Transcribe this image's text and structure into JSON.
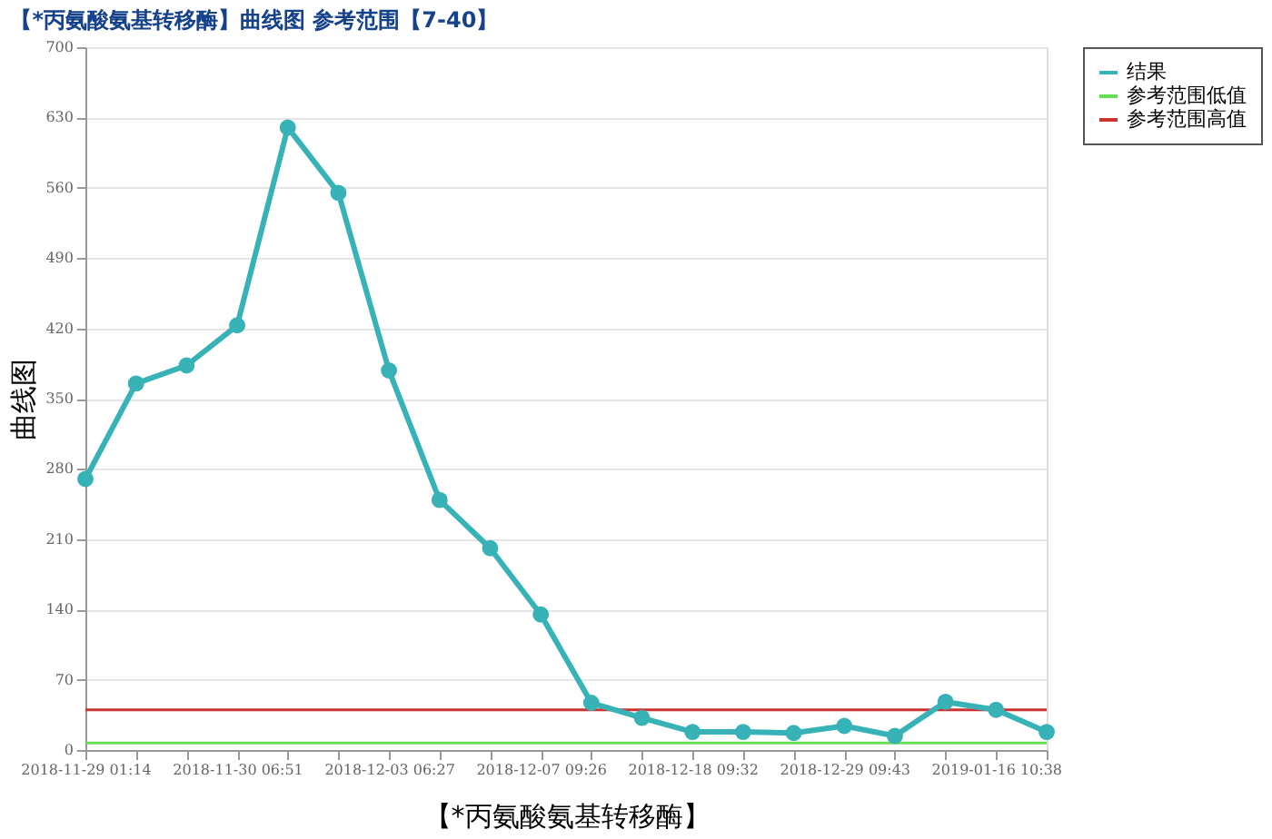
{
  "chart_data": {
    "type": "line",
    "title": "【*丙氨酸氨基转移酶】曲线图  参考范围【7-40】",
    "xlabel": "【*丙氨酸氨基转移酶】",
    "ylabel": "曲线图",
    "categories": [
      "2018-11-29 01:14",
      null,
      null,
      "2018-11-30 06:51",
      null,
      null,
      "2018-12-03 06:27",
      null,
      null,
      "2018-12-07 09:26",
      null,
      null,
      "2018-12-18 09:32",
      null,
      null,
      "2018-12-29 09:43",
      null,
      null,
      "2019-01-16 10:38",
      null
    ],
    "series": [
      {
        "name": "结果",
        "color": "#37b3b8",
        "marker": "circle",
        "values": [
          270,
          365,
          383,
          423,
          620,
          555,
          378,
          249,
          201,
          135,
          47,
          32,
          18,
          18,
          17,
          24,
          14,
          48,
          40,
          18
        ]
      },
      {
        "name": "参考范围低值",
        "color": "#66dd55",
        "marker": "none",
        "values": [
          7,
          7,
          7,
          7,
          7,
          7,
          7,
          7,
          7,
          7,
          7,
          7,
          7,
          7,
          7,
          7,
          7,
          7,
          7,
          7
        ]
      },
      {
        "name": "参考范围高值",
        "color": "#cc3333",
        "marker": "none",
        "values": [
          40,
          40,
          40,
          40,
          40,
          40,
          40,
          40,
          40,
          40,
          40,
          40,
          40,
          40,
          40,
          40,
          40,
          40,
          40,
          40
        ]
      }
    ],
    "ylim": [
      0,
      700
    ],
    "yticks": [
      0,
      70,
      140,
      210,
      280,
      350,
      420,
      490,
      560,
      630,
      700
    ],
    "grid": "y",
    "legend": "right"
  }
}
